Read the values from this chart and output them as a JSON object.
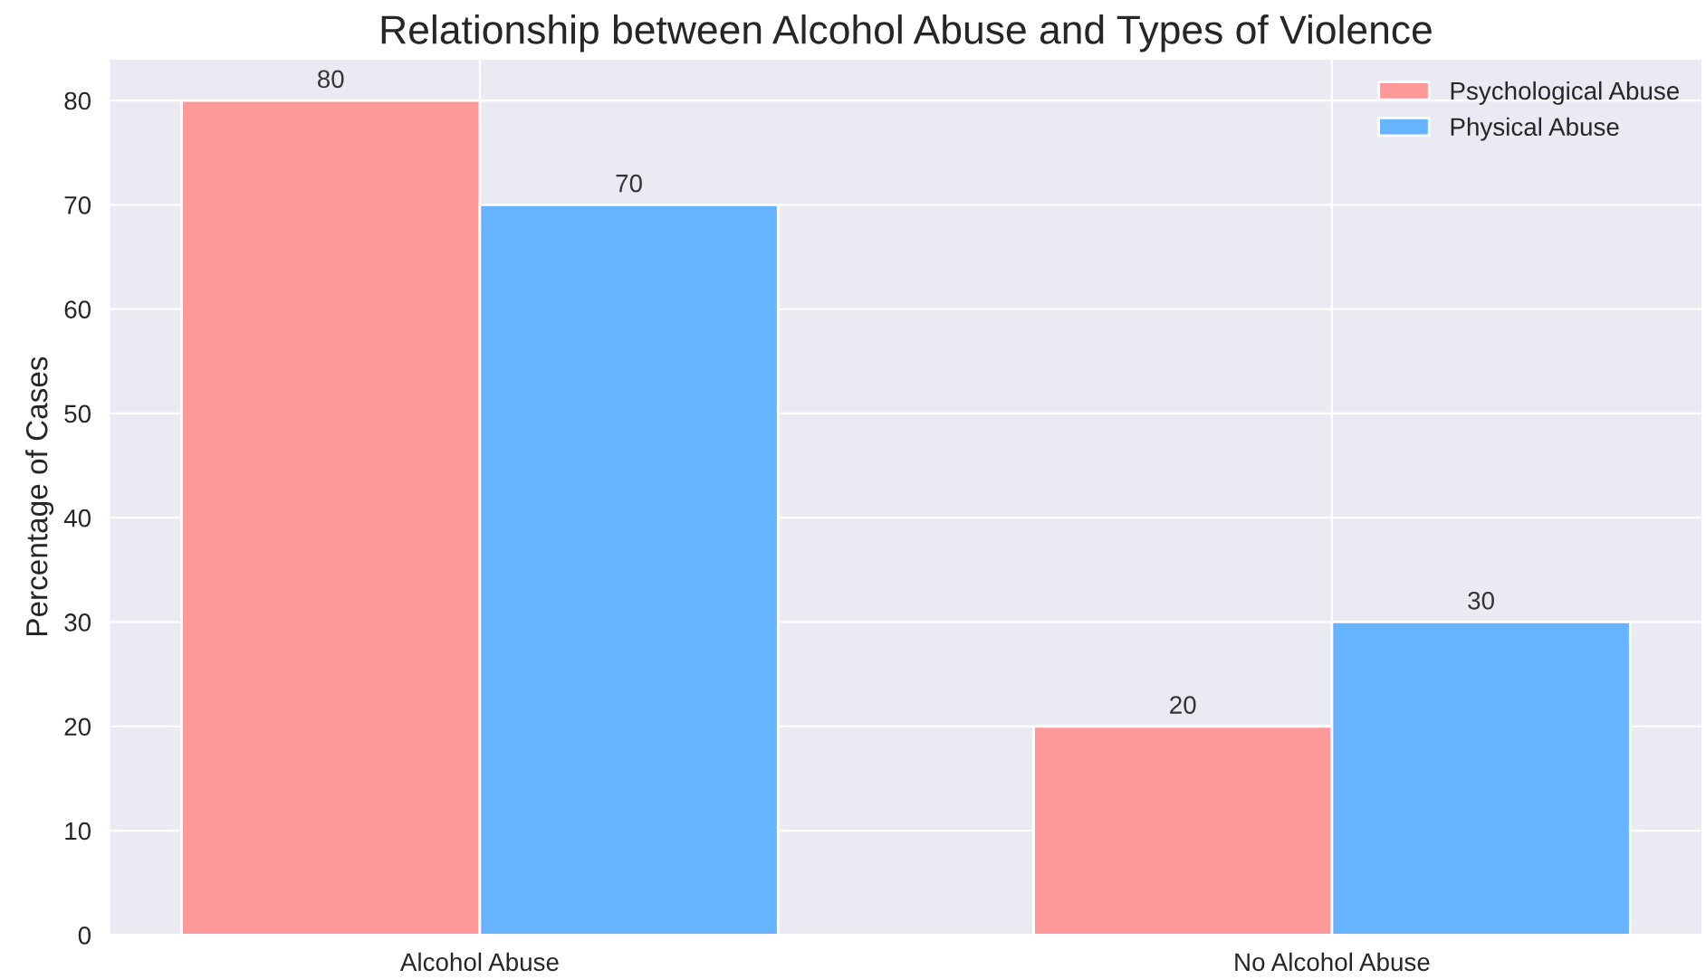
{
  "chart_data": {
    "type": "bar",
    "title": "Relationship between Alcohol Abuse and Types of Violence",
    "ylabel": "Percentage of Cases",
    "categories": [
      "Alcohol Abuse",
      "No Alcohol Abuse"
    ],
    "series": [
      {
        "name": "Psychological Abuse",
        "color": "#ff9999",
        "values": [
          80,
          20
        ]
      },
      {
        "name": "Physical Abuse",
        "color": "#66b3ff",
        "values": [
          70,
          30
        ]
      }
    ],
    "ylim": [
      0,
      84
    ],
    "yticks": [
      0,
      10,
      20,
      30,
      40,
      50,
      60,
      70,
      80
    ],
    "grid": true,
    "legend": "top right",
    "data_labels": true
  }
}
